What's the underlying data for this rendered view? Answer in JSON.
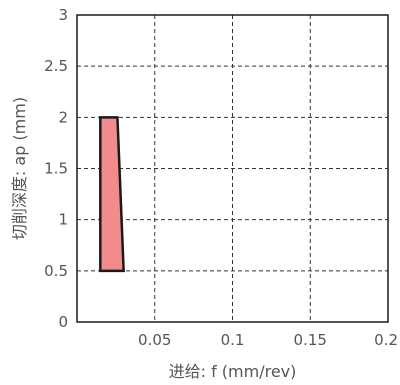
{
  "chart_data": {
    "type": "area",
    "xlabel": "进给: f (mm/rev)",
    "ylabel": "切削深度: ap (mm)",
    "xlim": [
      0,
      0.2
    ],
    "ylim": [
      0,
      3
    ],
    "xticks": [
      0.05,
      0.1,
      0.15,
      0.2
    ],
    "xtick_labels": [
      "0.05",
      "0.1",
      "0.15",
      "0.2"
    ],
    "yticks": [
      0,
      0.5,
      1,
      1.5,
      2,
      2.5,
      3
    ],
    "ytick_labels": [
      "0",
      "0.5",
      "1",
      "1.5",
      "2",
      "2.5",
      "3"
    ],
    "grid": true,
    "region": {
      "fill": "#f28b8b",
      "stroke": "#1a1a1a",
      "points": [
        {
          "x": 0.015,
          "y": 0.5
        },
        {
          "x": 0.03,
          "y": 0.5
        },
        {
          "x": 0.026,
          "y": 2.0
        },
        {
          "x": 0.015,
          "y": 2.0
        }
      ]
    }
  }
}
